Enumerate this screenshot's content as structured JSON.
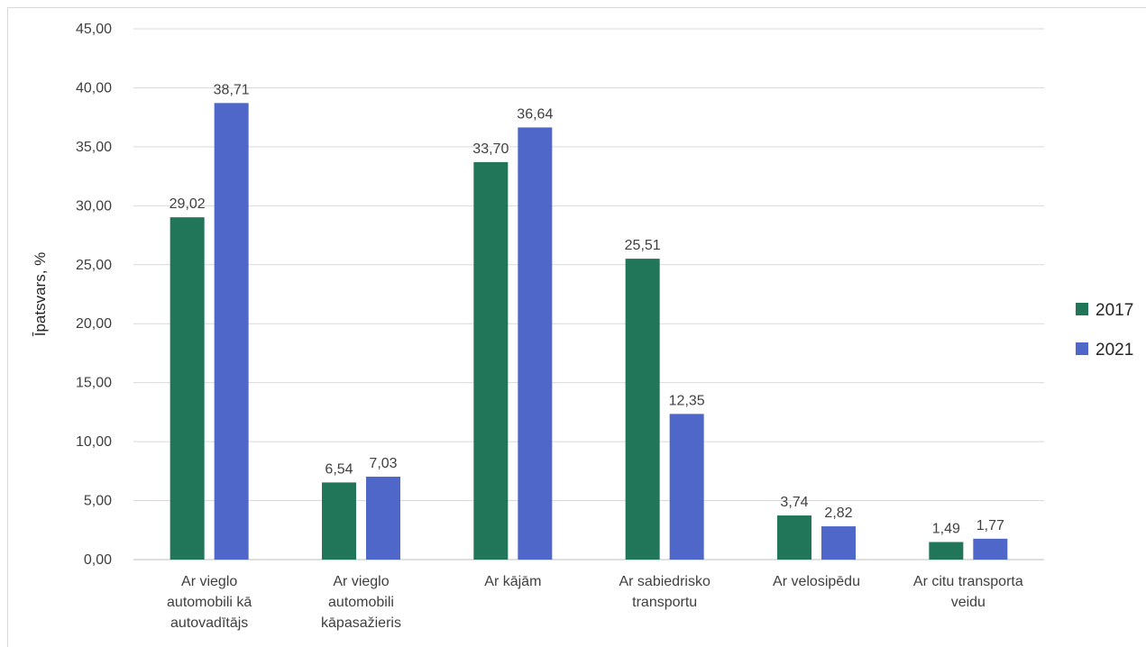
{
  "chart_data": {
    "type": "bar",
    "title": "",
    "xlabel": "",
    "ylabel": "Īpatsvars, %",
    "ylim": [
      0,
      45
    ],
    "ytick_step": 5,
    "ytick_labels": [
      "0,00",
      "5,00",
      "10,00",
      "15,00",
      "20,00",
      "25,00",
      "30,00",
      "35,00",
      "40,00",
      "45,00"
    ],
    "grid": true,
    "legend_position": "right",
    "categories": [
      [
        "Ar vieglo",
        "automobili kā",
        "autovadītājs"
      ],
      [
        "Ar vieglo",
        "automobili",
        "kāpasažieris"
      ],
      [
        "Ar kājām"
      ],
      [
        "Ar sabiedrisko",
        "transportu"
      ],
      [
        "Ar velosipēdu"
      ],
      [
        "Ar citu transporta",
        "veidu"
      ]
    ],
    "series": [
      {
        "name": "2017",
        "color": "#217558",
        "values": [
          29.02,
          6.54,
          33.7,
          25.51,
          3.74,
          1.49
        ],
        "labels": [
          "29,02",
          "6,54",
          "33,70",
          "25,51",
          "3,74",
          "1,49"
        ]
      },
      {
        "name": "2021",
        "color": "#4f67c8",
        "values": [
          38.71,
          7.03,
          36.64,
          12.35,
          2.82,
          1.77
        ],
        "labels": [
          "38,71",
          "7,03",
          "36,64",
          "12,35",
          "2,82",
          "1,77"
        ]
      }
    ]
  }
}
